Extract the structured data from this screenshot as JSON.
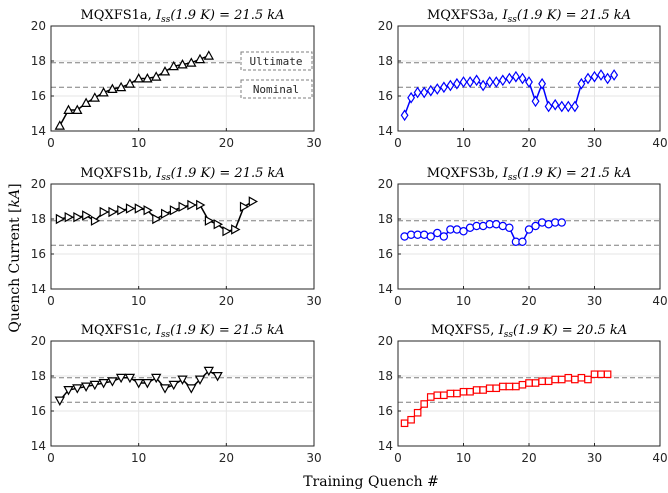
{
  "figure": {
    "ylabel": "Quench Current [",
    "ylabel_unit": "kA",
    "ylabel_close": "]",
    "xlabel": "Training Quench #"
  },
  "chart_data": [
    {
      "type": "line",
      "title_prefix": "MQXFS1a,",
      "title_formula": "I",
      "title_sub": "ss",
      "title_arg": "(1.9 K) = 21.5 kA",
      "marker": "triangle-up",
      "color": "#000000",
      "xlim": [
        0,
        30
      ],
      "ylim": [
        14,
        20
      ],
      "xticks": [
        0,
        10,
        20,
        30
      ],
      "yticks": [
        14,
        16,
        18,
        20
      ],
      "ultimate": 17.9,
      "nominal": 16.5,
      "annotations": [
        "Ultimate",
        "Nominal"
      ],
      "x": [
        1,
        2,
        3,
        4,
        5,
        6,
        7,
        8,
        9,
        10,
        11,
        12,
        13,
        14,
        15,
        16,
        17,
        18
      ],
      "y": [
        14.3,
        15.2,
        15.2,
        15.6,
        15.9,
        16.2,
        16.4,
        16.5,
        16.7,
        17.0,
        17.0,
        17.1,
        17.4,
        17.7,
        17.8,
        17.9,
        18.1,
        18.3
      ]
    },
    {
      "type": "line",
      "title_prefix": "MQXFS3a,",
      "title_formula": "I",
      "title_sub": "ss",
      "title_arg": "(1.9 K) = 21.5 kA",
      "marker": "diamond",
      "color": "#0000ff",
      "xlim": [
        0,
        40
      ],
      "ylim": [
        14,
        20
      ],
      "xticks": [
        0,
        10,
        20,
        30,
        40
      ],
      "yticks": [
        14,
        16,
        18,
        20
      ],
      "ultimate": 17.9,
      "nominal": 16.5,
      "annotations": [],
      "x": [
        1,
        2,
        3,
        4,
        5,
        6,
        7,
        8,
        9,
        10,
        11,
        12,
        13,
        14,
        15,
        16,
        17,
        18,
        19,
        20,
        21,
        22,
        23,
        24,
        25,
        26,
        27,
        28,
        29,
        30,
        31,
        32,
        33
      ],
      "y": [
        14.9,
        15.9,
        16.2,
        16.2,
        16.3,
        16.4,
        16.5,
        16.6,
        16.7,
        16.8,
        16.8,
        16.9,
        16.6,
        16.8,
        16.8,
        16.9,
        17.0,
        17.1,
        17.0,
        16.8,
        15.7,
        16.7,
        15.4,
        15.5,
        15.4,
        15.4,
        15.4,
        16.7,
        17.0,
        17.1,
        17.2,
        17.0,
        17.2
      ]
    },
    {
      "type": "line",
      "title_prefix": "MQXFS1b,",
      "title_formula": "I",
      "title_sub": "ss",
      "title_arg": "(1.9 K) = 21.5 kA",
      "marker": "triangle-right",
      "color": "#000000",
      "xlim": [
        0,
        30
      ],
      "ylim": [
        14,
        20
      ],
      "xticks": [
        0,
        10,
        20,
        30
      ],
      "yticks": [
        14,
        16,
        18,
        20
      ],
      "ultimate": 17.9,
      "nominal": 16.5,
      "annotations": [],
      "x": [
        1,
        2,
        3,
        4,
        5,
        6,
        7,
        8,
        9,
        10,
        11,
        12,
        13,
        14,
        15,
        16,
        17,
        18,
        19,
        20,
        21,
        22,
        23
      ],
      "y": [
        18.0,
        18.1,
        18.1,
        18.2,
        17.9,
        18.4,
        18.4,
        18.5,
        18.6,
        18.6,
        18.5,
        18.0,
        18.3,
        18.5,
        18.7,
        18.8,
        18.8,
        17.9,
        17.7,
        17.3,
        17.4,
        18.7,
        19.0
      ]
    },
    {
      "type": "line",
      "title_prefix": "MQXFS3b,",
      "title_formula": "I",
      "title_sub": "ss",
      "title_arg": "(1.9 K) = 21.5 kA",
      "marker": "circle",
      "color": "#0000ff",
      "xlim": [
        0,
        40
      ],
      "ylim": [
        14,
        20
      ],
      "xticks": [
        0,
        10,
        20,
        30,
        40
      ],
      "yticks": [
        14,
        16,
        18,
        20
      ],
      "ultimate": 17.9,
      "nominal": 16.5,
      "annotations": [],
      "x": [
        1,
        2,
        3,
        4,
        5,
        6,
        7,
        8,
        9,
        10,
        11,
        12,
        13,
        14,
        15,
        16,
        17,
        18,
        19,
        20,
        21,
        22,
        23,
        24,
        25
      ],
      "y": [
        17.0,
        17.1,
        17.1,
        17.1,
        17.0,
        17.2,
        17.0,
        17.4,
        17.4,
        17.3,
        17.5,
        17.6,
        17.6,
        17.7,
        17.7,
        17.6,
        17.5,
        16.7,
        16.7,
        17.4,
        17.6,
        17.8,
        17.7,
        17.8,
        17.8
      ]
    },
    {
      "type": "line",
      "title_prefix": "MQXFS1c,",
      "title_formula": "I",
      "title_sub": "ss",
      "title_arg": "(1.9 K) = 21.5 kA",
      "marker": "triangle-down",
      "color": "#000000",
      "xlim": [
        0,
        30
      ],
      "ylim": [
        14,
        20
      ],
      "xticks": [
        0,
        10,
        20,
        30
      ],
      "yticks": [
        14,
        16,
        18,
        20
      ],
      "ultimate": 17.9,
      "nominal": 16.5,
      "annotations": [],
      "x": [
        1,
        2,
        3,
        4,
        5,
        6,
        7,
        8,
        9,
        10,
        11,
        12,
        13,
        14,
        15,
        16,
        17,
        18,
        19
      ],
      "y": [
        16.6,
        17.2,
        17.3,
        17.4,
        17.5,
        17.6,
        17.7,
        17.9,
        17.9,
        17.6,
        17.6,
        17.9,
        17.3,
        17.5,
        17.8,
        17.3,
        17.8,
        18.3,
        18.0
      ]
    },
    {
      "type": "line",
      "title_prefix": "MQXFS5,",
      "title_formula": "I",
      "title_sub": "ss",
      "title_arg": "(1.9 K) = 20.5 kA",
      "marker": "square",
      "color": "#ff0000",
      "xlim": [
        0,
        40
      ],
      "ylim": [
        14,
        20
      ],
      "xticks": [
        0,
        10,
        20,
        30,
        40
      ],
      "yticks": [
        14,
        16,
        18,
        20
      ],
      "ultimate": 17.9,
      "nominal": 16.5,
      "annotations": [],
      "x": [
        1,
        2,
        3,
        4,
        5,
        6,
        7,
        8,
        9,
        10,
        11,
        12,
        13,
        14,
        15,
        16,
        17,
        18,
        19,
        20,
        21,
        22,
        23,
        24,
        25,
        26,
        27,
        28,
        29,
        30,
        31,
        32
      ],
      "y": [
        15.3,
        15.5,
        15.9,
        16.4,
        16.8,
        16.9,
        16.9,
        17.0,
        17.0,
        17.1,
        17.1,
        17.2,
        17.2,
        17.3,
        17.3,
        17.4,
        17.4,
        17.4,
        17.5,
        17.6,
        17.6,
        17.7,
        17.7,
        17.8,
        17.8,
        17.9,
        17.8,
        17.9,
        17.8,
        18.1,
        18.1,
        18.1
      ]
    }
  ]
}
